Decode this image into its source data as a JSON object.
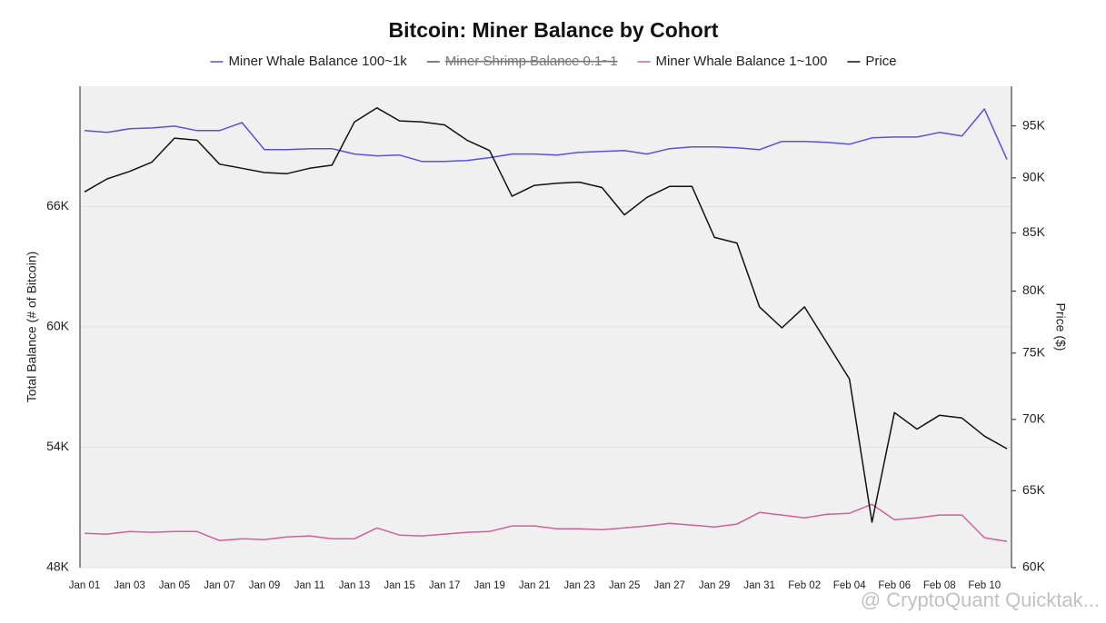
{
  "chart_data": {
    "type": "line",
    "title": "Bitcoin: Miner Balance by Cohort",
    "ylabel": "Total Balance (# of Bitcoin)",
    "y2label": "Price ($)",
    "watermark": "@ CryptoQuant Quicktak...",
    "categories": [
      "Jan 01",
      null,
      "Jan 03",
      null,
      "Jan 05",
      null,
      "Jan 07",
      null,
      "Jan 09",
      null,
      "Jan 11",
      null,
      "Jan 13",
      null,
      "Jan 15",
      null,
      "Jan 17",
      null,
      "Jan 19",
      null,
      "Jan 21",
      null,
      "Jan 23",
      null,
      "Jan 25",
      null,
      "Jan 27",
      null,
      "Jan 29",
      null,
      "Jan 31",
      null,
      "Feb 02",
      null,
      "Feb 04",
      null,
      "Feb 06",
      null,
      "Feb 08",
      null,
      "Feb 10",
      null
    ],
    "ylim": [
      48000,
      72000
    ],
    "yticks": [
      {
        "value": 48000,
        "label": "48K"
      },
      {
        "value": 54000,
        "label": "54K"
      },
      {
        "value": 60000,
        "label": "60K"
      },
      {
        "value": 66000,
        "label": "66K"
      }
    ],
    "y2lim": [
      60000,
      99000
    ],
    "y2log": true,
    "y2ticks": [
      {
        "value": 60000,
        "label": "60K"
      },
      {
        "value": 65000,
        "label": "65K"
      },
      {
        "value": 70000,
        "label": "70K"
      },
      {
        "value": 75000,
        "label": "75K"
      },
      {
        "value": 80000,
        "label": "80K"
      },
      {
        "value": 85000,
        "label": "85K"
      },
      {
        "value": 90000,
        "label": "90K"
      },
      {
        "value": 95000,
        "label": "95K"
      }
    ],
    "grid": true,
    "series": [
      {
        "name": "Miner Whale Balance 100~1k",
        "color": "#5b4fe0",
        "values": [
          69790,
          69700,
          69880,
          69920,
          70010,
          69790,
          69790,
          70190,
          68840,
          68840,
          68890,
          68890,
          68620,
          68530,
          68570,
          68250,
          68250,
          68300,
          68440,
          68620,
          68620,
          68570,
          68710,
          68750,
          68800,
          68620,
          68890,
          68980,
          68980,
          68930,
          68840,
          69250,
          69250,
          69200,
          69110,
          69430,
          69470,
          69470,
          69700,
          69520,
          70870,
          68350
        ]
      },
      {
        "name": "Miner Shrimp Balance 0.1~1",
        "color": "#555555",
        "hidden": true
      },
      {
        "name": "Miner Whale Balance 1~100",
        "color": "#d0609a",
        "values": [
          49710,
          49670,
          49800,
          49760,
          49800,
          49800,
          49350,
          49440,
          49400,
          49530,
          49580,
          49440,
          49440,
          49980,
          49620,
          49580,
          49670,
          49760,
          49800,
          50080,
          50080,
          49940,
          49940,
          49890,
          49980,
          50080,
          50210,
          50120,
          50030,
          50170,
          50750,
          50620,
          50480,
          50660,
          50710,
          51160,
          50390,
          50480,
          50620,
          50620,
          49490,
          49310
        ]
      },
      {
        "name": "Price",
        "color": "#111111",
        "axis": "y2",
        "values": [
          88700,
          89900,
          90600,
          91500,
          93800,
          93600,
          91300,
          90900,
          90500,
          90400,
          90900,
          91200,
          95400,
          96800,
          95500,
          95400,
          95100,
          93600,
          92600,
          88300,
          89300,
          89500,
          89600,
          89100,
          86600,
          88200,
          89200,
          89200,
          84600,
          84100,
          78700,
          77000,
          78700,
          75800,
          73000,
          62900,
          70500,
          69300,
          70300,
          70100,
          68800,
          67900
        ]
      }
    ]
  }
}
